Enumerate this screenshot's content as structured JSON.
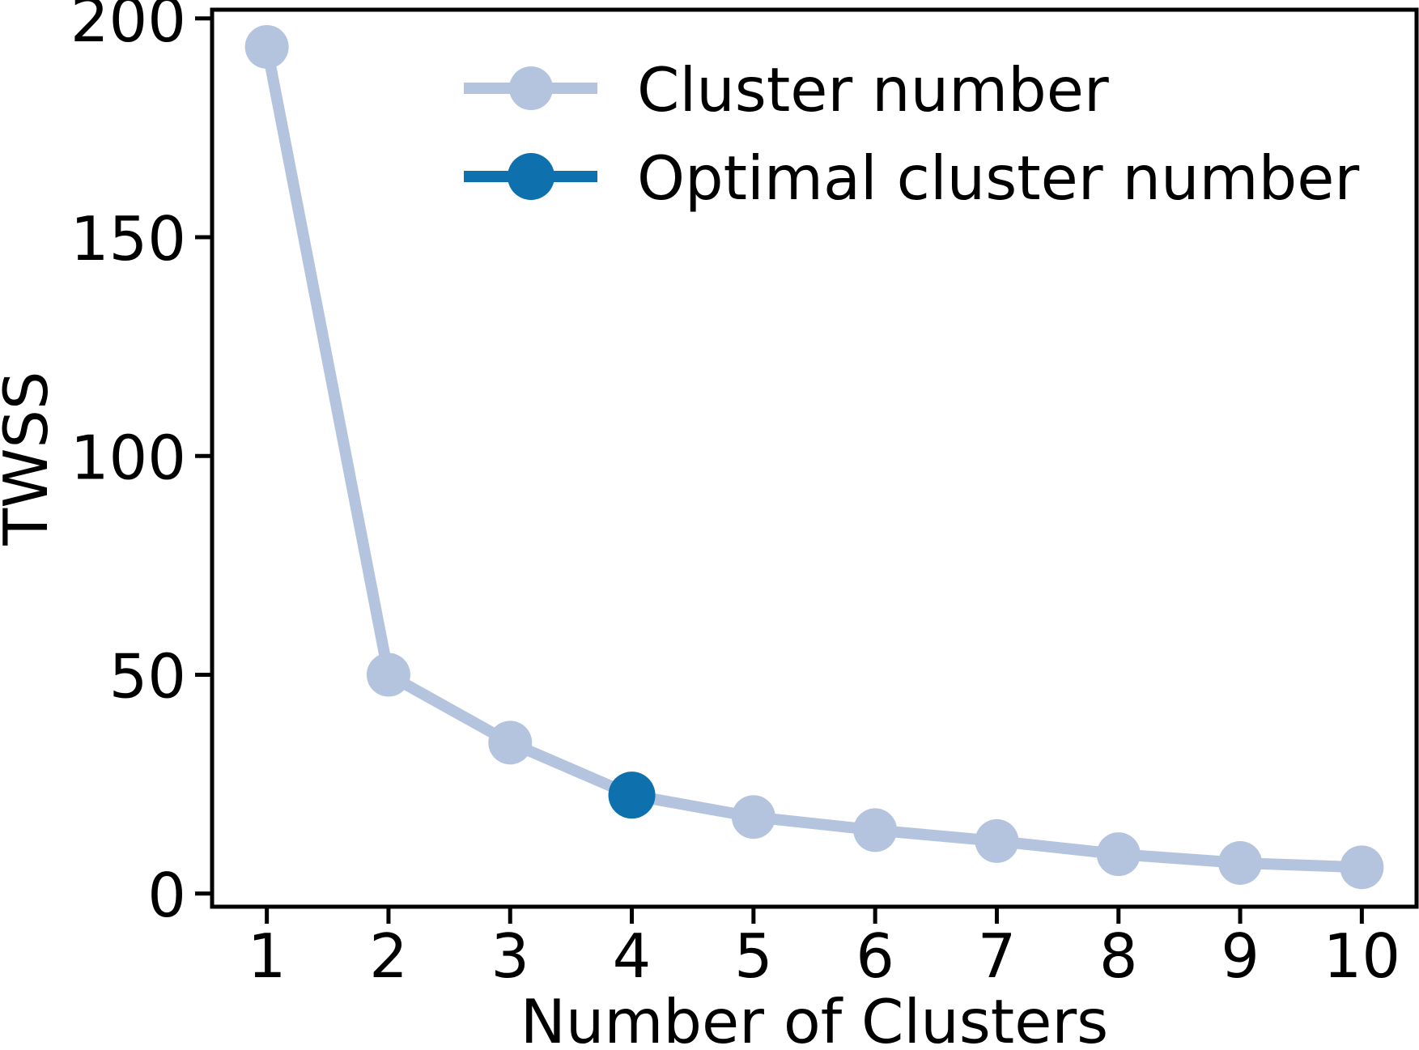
{
  "chart_data": {
    "type": "line",
    "x": [
      1,
      2,
      3,
      4,
      5,
      6,
      7,
      8,
      9,
      10
    ],
    "series": [
      {
        "name": "Cluster number",
        "color": "#b4c4de",
        "values": [
          193.5,
          50,
          34.5,
          22.5,
          17.5,
          14.5,
          12,
          9,
          7,
          6
        ],
        "marker": "circle",
        "marker_radius": 27,
        "line_width": 14
      },
      {
        "name": "Optimal cluster number",
        "color": "#0f70ae",
        "points": [
          {
            "x": 4,
            "y": 22.5
          }
        ],
        "marker": "circle",
        "marker_radius": 29,
        "line_width": 14
      }
    ],
    "title": "",
    "xlabel": "Number of Clusters",
    "ylabel": "TWSS",
    "xticks": [
      1,
      2,
      3,
      4,
      5,
      6,
      7,
      8,
      9,
      10
    ],
    "yticks": [
      0,
      50,
      100,
      150,
      200
    ],
    "xlim": [
      0.55,
      10.45
    ],
    "ylim": [
      -3,
      202
    ],
    "grid": false,
    "legend_position": "upper center",
    "legend_frame": false,
    "background_color": "#ffffff",
    "axis_color": "#000000",
    "text_color": "#000000"
  }
}
